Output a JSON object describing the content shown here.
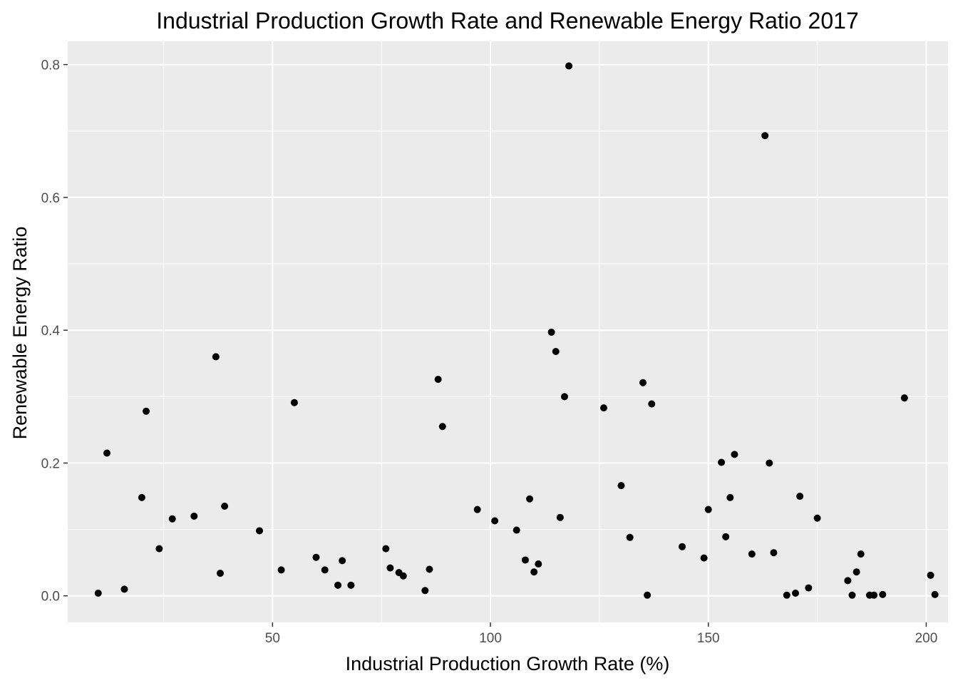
{
  "chart_data": {
    "type": "scatter",
    "title": "Industrial Production Growth Rate and Renewable Energy Ratio 2017",
    "xlabel": "Industrial Production Growth Rate (%)",
    "ylabel": "Renewable Energy Ratio",
    "xlim": [
      3,
      205
    ],
    "ylim": [
      -0.04,
      0.835
    ],
    "x_ticks": [
      50,
      100,
      150,
      200
    ],
    "x_tick_labels": [
      "50",
      "100",
      "150",
      "200"
    ],
    "y_ticks": [
      0.0,
      0.2,
      0.4,
      0.6,
      0.8
    ],
    "y_tick_labels": [
      "0.0",
      "0.2",
      "0.4",
      "0.6",
      "0.8"
    ],
    "grid": true,
    "colors": {
      "panel": "#ebebeb",
      "grid": "#ffffff",
      "point": "#000000",
      "tick_text": "#4d4d4d",
      "text": "#000000"
    },
    "series": [
      {
        "points": [
          [
            10,
            0.004
          ],
          [
            12,
            0.215
          ],
          [
            16,
            0.01
          ],
          [
            20,
            0.148
          ],
          [
            21,
            0.278
          ],
          [
            24,
            0.071
          ],
          [
            27,
            0.116
          ],
          [
            32,
            0.12
          ],
          [
            37,
            0.36
          ],
          [
            38,
            0.034
          ],
          [
            39,
            0.135
          ],
          [
            47,
            0.098
          ],
          [
            52,
            0.039
          ],
          [
            55,
            0.291
          ],
          [
            60,
            0.058
          ],
          [
            62,
            0.039
          ],
          [
            65,
            0.016
          ],
          [
            66,
            0.053
          ],
          [
            68,
            0.016
          ],
          [
            76,
            0.071
          ],
          [
            77,
            0.042
          ],
          [
            79,
            0.035
          ],
          [
            80,
            0.03
          ],
          [
            85,
            0.008
          ],
          [
            86,
            0.04
          ],
          [
            88,
            0.326
          ],
          [
            89,
            0.255
          ],
          [
            97,
            0.13
          ],
          [
            101,
            0.113
          ],
          [
            106,
            0.099
          ],
          [
            108,
            0.054
          ],
          [
            109,
            0.146
          ],
          [
            110,
            0.036
          ],
          [
            111,
            0.048
          ],
          [
            114,
            0.397
          ],
          [
            115,
            0.368
          ],
          [
            116,
            0.118
          ],
          [
            117,
            0.3
          ],
          [
            118,
            0.798
          ],
          [
            126,
            0.283
          ],
          [
            130,
            0.166
          ],
          [
            132,
            0.088
          ],
          [
            135,
            0.321
          ],
          [
            136,
            0.001
          ],
          [
            137,
            0.289
          ],
          [
            144,
            0.074
          ],
          [
            149,
            0.057
          ],
          [
            150,
            0.13
          ],
          [
            153,
            0.201
          ],
          [
            154,
            0.089
          ],
          [
            155,
            0.148
          ],
          [
            156,
            0.213
          ],
          [
            160,
            0.063
          ],
          [
            163,
            0.693
          ],
          [
            164,
            0.2
          ],
          [
            165,
            0.065
          ],
          [
            168,
            0.001
          ],
          [
            170,
            0.004
          ],
          [
            171,
            0.15
          ],
          [
            173,
            0.012
          ],
          [
            175,
            0.117
          ],
          [
            182,
            0.023
          ],
          [
            183,
            0.001
          ],
          [
            184,
            0.036
          ],
          [
            185,
            0.063
          ],
          [
            187,
            0.001
          ],
          [
            188,
            0.001
          ],
          [
            190,
            0.002
          ],
          [
            195,
            0.298
          ],
          [
            201,
            0.031
          ],
          [
            202,
            0.002
          ]
        ]
      }
    ]
  }
}
